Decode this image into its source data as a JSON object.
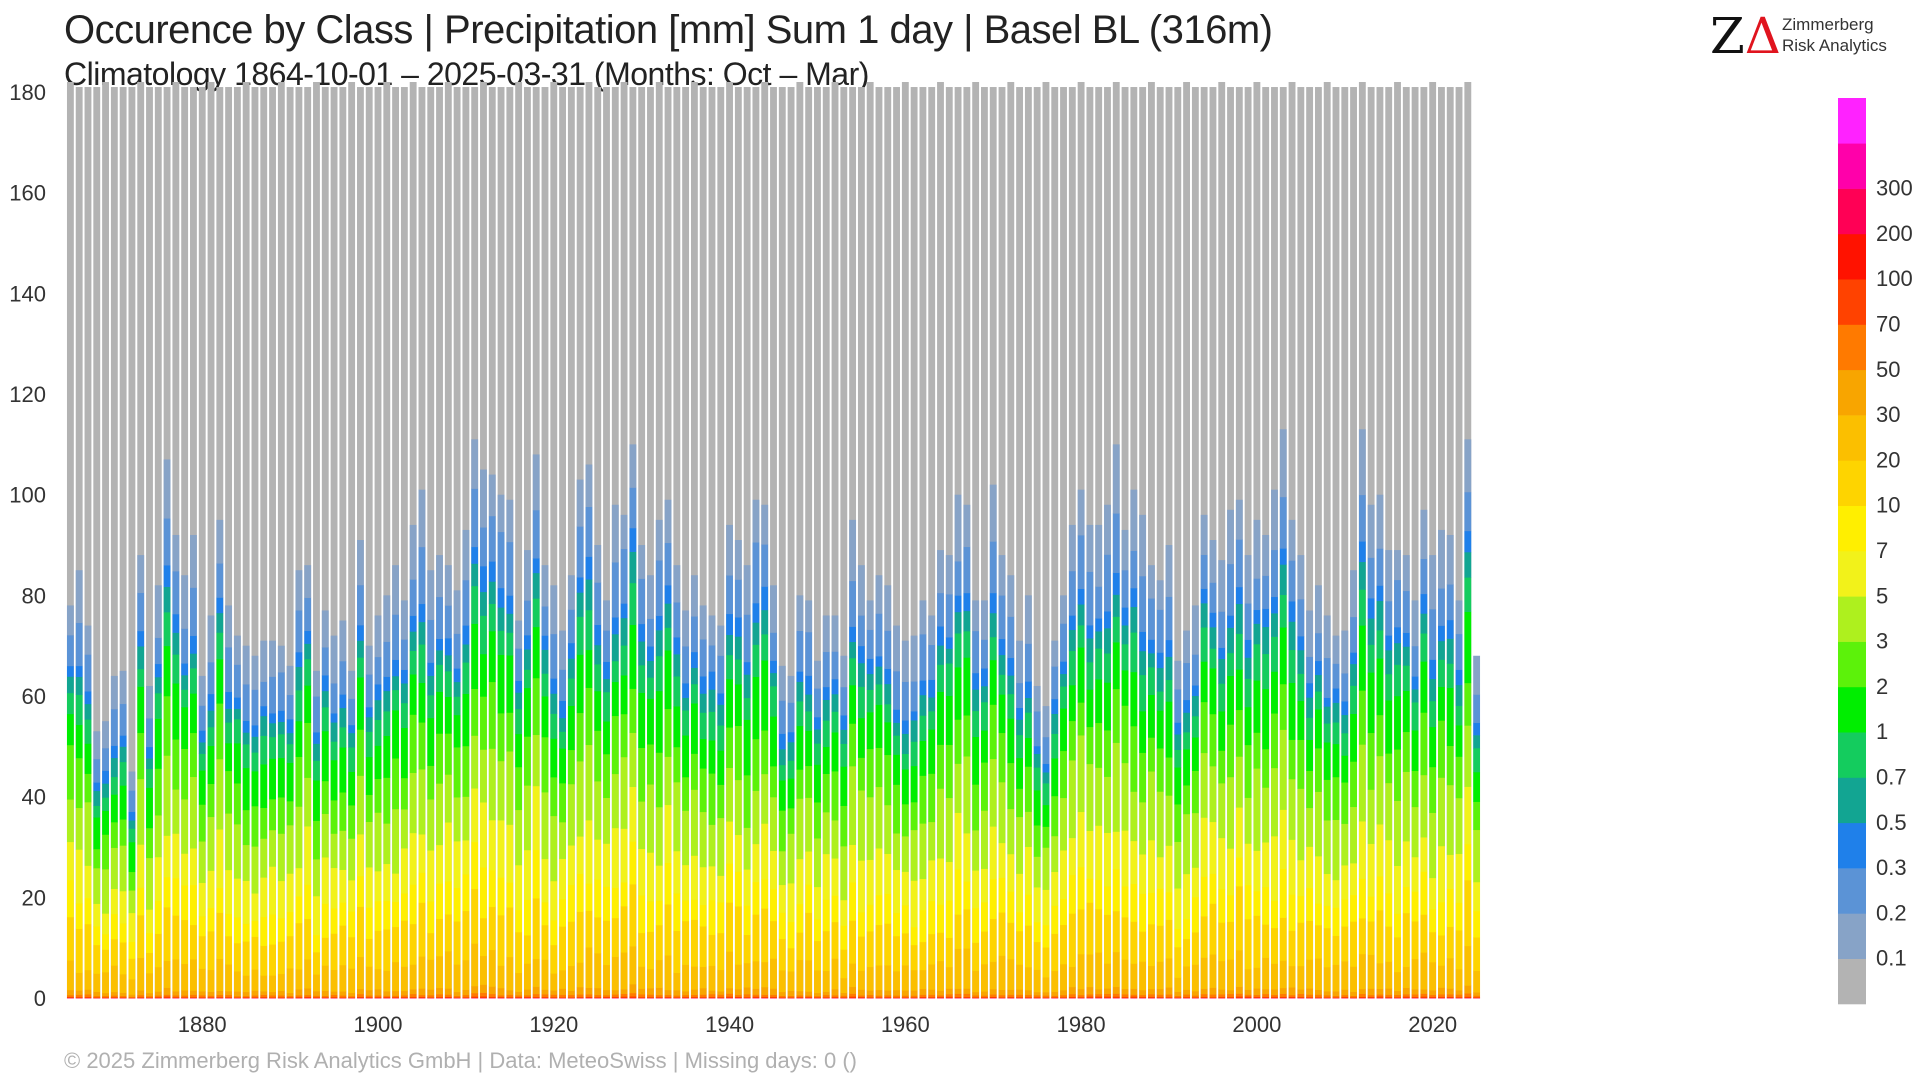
{
  "header": {
    "title": "Occurence by Class | Precipitation [mm] Sum 1 day | Basel  BL (316m)",
    "subtitle": "Climatology 1864-10-01 – 2025-03-31 (Months: Oct – Mar)"
  },
  "logo": {
    "mark": "ZΔ",
    "line1": "Zimmerberg",
    "line2": "Risk Analytics"
  },
  "footer": {
    "text": "©  2025 Zimmerberg Risk Analytics GmbH | Data: MeteoSwiss | Missing days: 0 ()"
  },
  "colors": {
    "dry": "#b3b3b3",
    "classes": [
      "#87a3c7",
      "#5b93d6",
      "#1f80ea",
      "#12a592",
      "#14cc5e",
      "#00ee00",
      "#5cf20a",
      "#aef01e",
      "#f2f21a",
      "#ffef00",
      "#fed400",
      "#fbbf00",
      "#f8a500",
      "#ff7a00",
      "#ff4200",
      "#ff1200",
      "#ff0055",
      "#ff00aa",
      "#ff22ff"
    ]
  },
  "chart_data": {
    "type": "bar",
    "stacked": true,
    "x_start_year": 1865,
    "x_end_year": 2025,
    "xticks": [
      1880,
      1900,
      1920,
      1940,
      1960,
      1980,
      2000,
      2020
    ],
    "ylim": [
      0,
      182
    ],
    "yticks": [
      0,
      20,
      40,
      60,
      80,
      100,
      120,
      140,
      160,
      180
    ],
    "grid": false,
    "legend": {
      "position": "right",
      "labels": [
        "0.1",
        "0.2",
        "0.3",
        "0.5",
        "0.7",
        "1",
        "2",
        "3",
        "5",
        "7",
        "10",
        "20",
        "30",
        "50",
        "70",
        "100",
        "200",
        "300"
      ]
    },
    "season_days": [
      182,
      181,
      181,
      181,
      182,
      181,
      181,
      181,
      182,
      181,
      181,
      181,
      182,
      181,
      181,
      181,
      182,
      181,
      181,
      181,
      182,
      181,
      181,
      181,
      182,
      181,
      181,
      181,
      182,
      181,
      181,
      181,
      182,
      181,
      181,
      181,
      182,
      181,
      181,
      182,
      181,
      181,
      181,
      182,
      181,
      181,
      181,
      182,
      181,
      181,
      181,
      182,
      181,
      181,
      181,
      182,
      181,
      181,
      181,
      182,
      181,
      181,
      181,
      182,
      181,
      181,
      181,
      182,
      181,
      181,
      181,
      182,
      181,
      181,
      181,
      182,
      181,
      181,
      181,
      182,
      181,
      181,
      181,
      182,
      181,
      181,
      181,
      182,
      181,
      181,
      181,
      182,
      181,
      181,
      181,
      182,
      181,
      181,
      181,
      182,
      181,
      181,
      181,
      182,
      181,
      181,
      181,
      182,
      181,
      181,
      181,
      182,
      181,
      181,
      181,
      182,
      181,
      181,
      181,
      182,
      181,
      181,
      181,
      182,
      181,
      181,
      181,
      182,
      181,
      181,
      181,
      182,
      181,
      181,
      181,
      182,
      181,
      181,
      181,
      182,
      181,
      181,
      181,
      182,
      181,
      181,
      181,
      182,
      181,
      181,
      181,
      182,
      181,
      181,
      181,
      182,
      181,
      181,
      181,
      182
    ],
    "wet_days_total": [
      78,
      85,
      74,
      53,
      55,
      64,
      65,
      45,
      88,
      62,
      82,
      107,
      92,
      84,
      92,
      64,
      76,
      95,
      78,
      72,
      70,
      68,
      71,
      71,
      70,
      66,
      85,
      86,
      65,
      77,
      72,
      75,
      65,
      91,
      70,
      76,
      80,
      86,
      79,
      94,
      101,
      85,
      88,
      86,
      81,
      93,
      111,
      105,
      104,
      100,
      99,
      75,
      89,
      108,
      86,
      82,
      73,
      84,
      103,
      106,
      90,
      79,
      98,
      96,
      110,
      90,
      84,
      95,
      99,
      86,
      77,
      84,
      78,
      76,
      74,
      94,
      91,
      86,
      99,
      98,
      82,
      66,
      64,
      80,
      79,
      67,
      76,
      76,
      68,
      95,
      86,
      79,
      84,
      82,
      74,
      71,
      72,
      79,
      76,
      89,
      88,
      100,
      98,
      79,
      79,
      102,
      88,
      84,
      71,
      80,
      62,
      58,
      71,
      80,
      94,
      101,
      94,
      94,
      98,
      110,
      93,
      101,
      96,
      86,
      83,
      90,
      67,
      73,
      78,
      96,
      91,
      87,
      97,
      99,
      88,
      95,
      92,
      101,
      113,
      95,
      88,
      77,
      82,
      76,
      72,
      73,
      85,
      113,
      98,
      100,
      89,
      89,
      88,
      79,
      97,
      88,
      93,
      92,
      79,
      111,
      68
    ]
  }
}
